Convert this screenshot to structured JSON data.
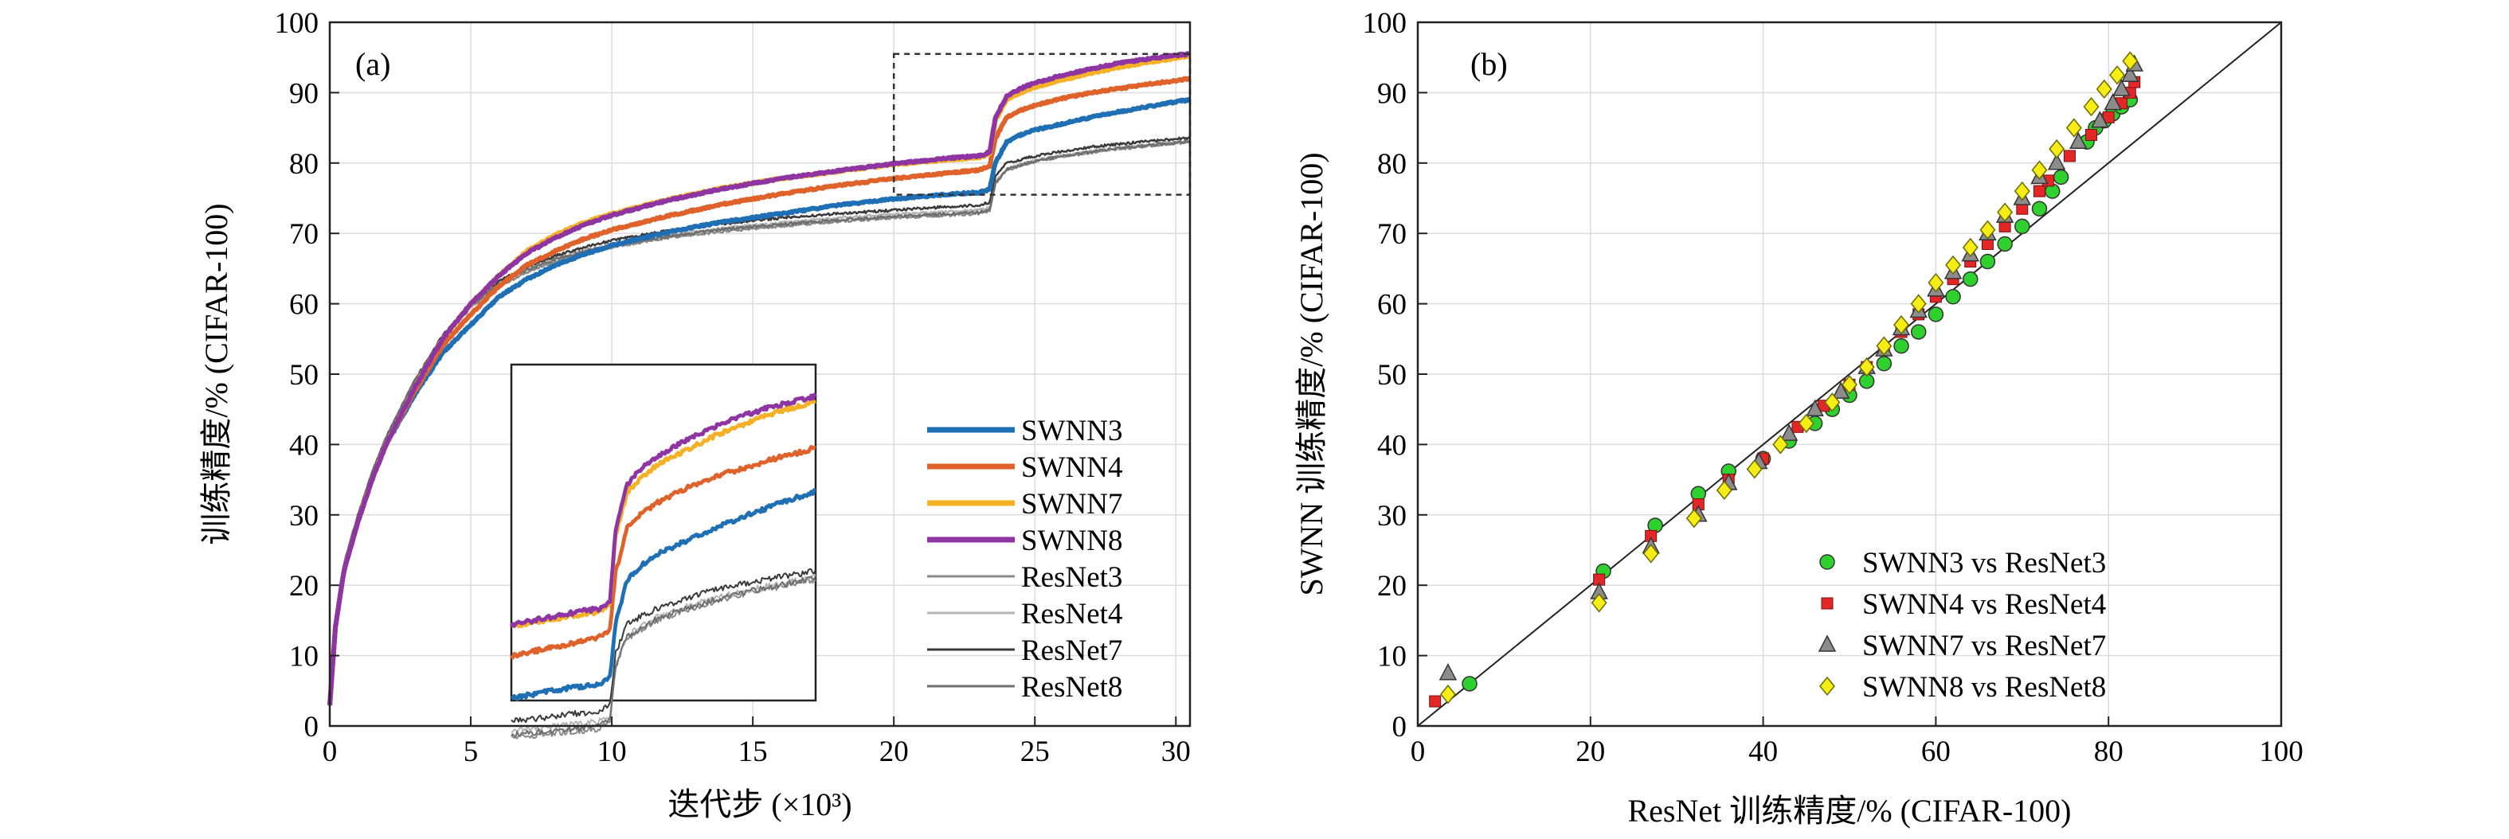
{
  "figure": {
    "panels": [
      "(a)",
      "(b)"
    ]
  },
  "chart_data": [
    {
      "type": "line",
      "panel": "(a)",
      "xlabel": "迭代步 (×10³)",
      "ylabel": "训练精度/% (CIFAR-100)",
      "xlim": [
        0,
        30.5
      ],
      "ylim": [
        0,
        100
      ],
      "xticks": [
        0,
        5,
        10,
        15,
        20,
        25,
        30
      ],
      "yticks": [
        0,
        10,
        20,
        30,
        40,
        50,
        60,
        70,
        80,
        90,
        100
      ],
      "grid": true,
      "legend_position": "bottom-right",
      "inset": {
        "x_range": [
          20,
          30.5
        ],
        "y_range": [
          75.5,
          95.5
        ],
        "placement": "lower-middle"
      },
      "x": [
        0,
        0.2,
        0.5,
        1,
        1.5,
        2,
        3,
        4,
        5,
        6,
        7,
        8,
        9,
        10,
        12,
        14,
        16,
        18,
        20,
        22,
        23,
        23.2,
        23.4,
        23.6,
        24,
        24.5,
        25,
        26,
        27,
        28,
        29,
        30,
        30.5
      ],
      "series": [
        {
          "name": "SWNN3",
          "color": "#1f6fb4",
          "width": 6,
          "values": [
            3,
            14,
            22,
            29,
            35,
            40,
            47,
            53,
            57,
            61,
            63.5,
            65.5,
            67,
            68.3,
            70.2,
            71.7,
            72.8,
            74,
            74.9,
            75.6,
            75.8,
            76,
            76.3,
            80,
            83,
            84,
            84.7,
            85.6,
            86.5,
            87.3,
            88,
            88.7,
            89
          ]
        },
        {
          "name": "SWNN4",
          "color": "#e0622b",
          "width": 6,
          "values": [
            3,
            14,
            22,
            29,
            35,
            40,
            47.5,
            54,
            58.5,
            62.5,
            65.5,
            67.5,
            69.2,
            70.5,
            72.5,
            74.2,
            75.6,
            76.8,
            77.8,
            78.6,
            79,
            79.3,
            79.6,
            83.5,
            86.5,
            87.5,
            88.2,
            89.2,
            90,
            90.6,
            91.2,
            91.7,
            92
          ]
        },
        {
          "name": "SWNN7",
          "color": "#f5b026",
          "width": 6,
          "values": [
            3,
            14,
            22,
            29,
            35,
            40,
            48,
            55,
            60,
            64,
            67.5,
            69.8,
            71.5,
            72.8,
            74.8,
            76.5,
            77.8,
            78.8,
            79.8,
            80.5,
            80.8,
            81,
            81.4,
            86,
            89,
            90,
            90.8,
            91.8,
            92.8,
            93.6,
            94.3,
            94.9,
            95.2
          ]
        },
        {
          "name": "SWNN8",
          "color": "#8e34a3",
          "width": 6,
          "values": [
            3,
            14,
            22,
            29,
            35,
            40,
            48,
            55,
            60,
            64,
            67.2,
            69.4,
            71.2,
            72.6,
            74.7,
            76.4,
            77.8,
            78.9,
            79.9,
            80.7,
            81,
            81.2,
            81.6,
            86.5,
            89.5,
            90.6,
            91.4,
            92.5,
            93.4,
            94.2,
            94.8,
            95.3,
            95.5
          ]
        },
        {
          "name": "ResNet3",
          "color": "#8a8a8a",
          "width": 2.5,
          "values": [
            3,
            15,
            23,
            30,
            36,
            41,
            49,
            55,
            59.5,
            62.5,
            64.5,
            66,
            67.2,
            68,
            69.4,
            70.3,
            71,
            71.7,
            72.2,
            72.6,
            72.8,
            73,
            73.2,
            77,
            79,
            79.6,
            80.2,
            80.9,
            81.5,
            82,
            82.4,
            82.8,
            83
          ]
        },
        {
          "name": "ResNet4",
          "color": "#b5b5b5",
          "width": 2.5,
          "values": [
            3,
            15,
            23,
            30,
            36,
            41,
            49,
            55.5,
            60,
            63,
            65,
            66.5,
            67.6,
            68.5,
            69.8,
            70.8,
            71.5,
            72.2,
            72.7,
            73.1,
            73.3,
            73.5,
            73.7,
            77.3,
            79.2,
            79.8,
            80.4,
            81.1,
            81.7,
            82.2,
            82.6,
            83,
            83.2
          ]
        },
        {
          "name": "ResNet7",
          "color": "#3a3a3a",
          "width": 2.5,
          "values": [
            3,
            15,
            23,
            30,
            36,
            41,
            49,
            55.5,
            60,
            63.2,
            65.3,
            66.8,
            68,
            69,
            70.4,
            71.4,
            72.2,
            72.8,
            73.3,
            73.8,
            74,
            74.2,
            74.4,
            78,
            80,
            80.5,
            81,
            81.7,
            82.3,
            82.7,
            83.1,
            83.4,
            83.6
          ]
        },
        {
          "name": "ResNet8",
          "color": "#6e6e6e",
          "width": 2.5,
          "values": [
            3,
            15,
            23,
            30,
            36,
            41,
            49,
            55.3,
            59.8,
            62.8,
            64.8,
            66.3,
            67.4,
            68.3,
            69.6,
            70.6,
            71.3,
            71.9,
            72.4,
            72.8,
            73,
            73.2,
            73.4,
            77.1,
            79.1,
            79.7,
            80.3,
            81,
            81.6,
            82.1,
            82.5,
            82.9,
            83.1
          ]
        }
      ]
    },
    {
      "type": "scatter",
      "panel": "(b)",
      "xlabel": "ResNet 训练精度/% (CIFAR-100)",
      "ylabel": "SWNN 训练精度/% (CIFAR-100)",
      "xlim": [
        0,
        100
      ],
      "ylim": [
        0,
        100
      ],
      "xticks": [
        0,
        20,
        40,
        60,
        80,
        100
      ],
      "yticks": [
        0,
        10,
        20,
        30,
        40,
        50,
        60,
        70,
        80,
        90,
        100
      ],
      "grid": true,
      "legend_position": "bottom-right",
      "reference_line": "y = x",
      "series": [
        {
          "name": "SWNN3 vs ResNet3",
          "marker": "circle",
          "color": "#2fd12f",
          "points": [
            [
              6,
              6
            ],
            [
              21.5,
              22
            ],
            [
              27.5,
              28.5
            ],
            [
              32.5,
              33
            ],
            [
              36,
              36.2
            ],
            [
              40,
              38
            ],
            [
              43,
              40.5
            ],
            [
              46,
              43
            ],
            [
              48,
              45
            ],
            [
              50,
              47
            ],
            [
              52,
              49
            ],
            [
              54,
              51.5
            ],
            [
              56,
              54
            ],
            [
              58,
              56
            ],
            [
              60,
              58.5
            ],
            [
              62,
              61
            ],
            [
              64,
              63.5
            ],
            [
              66,
              66
            ],
            [
              68,
              68.5
            ],
            [
              70,
              71
            ],
            [
              72,
              73.5
            ],
            [
              73.5,
              76
            ],
            [
              74.5,
              78
            ],
            [
              77.5,
              83
            ],
            [
              78.5,
              85
            ],
            [
              79.5,
              86
            ],
            [
              80.5,
              87
            ],
            [
              81.5,
              88
            ],
            [
              82.5,
              89
            ]
          ]
        },
        {
          "name": "SWNN4 vs ResNet4",
          "marker": "square",
          "color": "#e32626",
          "points": [
            [
              2,
              3.5
            ],
            [
              21,
              20.8
            ],
            [
              27,
              27
            ],
            [
              32.5,
              31.5
            ],
            [
              36,
              35
            ],
            [
              40,
              38
            ],
            [
              44,
              42.5
            ],
            [
              47,
              45.5
            ],
            [
              50,
              48.5
            ],
            [
              52,
              51
            ],
            [
              54,
              53.5
            ],
            [
              56,
              56
            ],
            [
              58,
              58.5
            ],
            [
              60,
              61
            ],
            [
              62,
              63.5
            ],
            [
              64,
              66
            ],
            [
              66,
              68.5
            ],
            [
              68,
              71
            ],
            [
              70,
              73.5
            ],
            [
              72,
              76
            ],
            [
              73,
              77.5
            ],
            [
              75.5,
              81
            ],
            [
              78,
              84
            ],
            [
              80,
              86.5
            ],
            [
              81.5,
              88.5
            ],
            [
              82.5,
              90
            ],
            [
              83,
              91.5
            ]
          ]
        },
        {
          "name": "SWNN7 vs ResNet7",
          "marker": "triangle",
          "color": "#8c8c8c",
          "points": [
            [
              3.5,
              7.5
            ],
            [
              21,
              19
            ],
            [
              27,
              25.5
            ],
            [
              32.5,
              30
            ],
            [
              36,
              34.5
            ],
            [
              39.5,
              37.5
            ],
            [
              43,
              41.5
            ],
            [
              46,
              45
            ],
            [
              49,
              47.5
            ],
            [
              52,
              51
            ],
            [
              54,
              53.5
            ],
            [
              56,
              56.5
            ],
            [
              58,
              59
            ],
            [
              60,
              62
            ],
            [
              62,
              64.5
            ],
            [
              64,
              67
            ],
            [
              66,
              70
            ],
            [
              68,
              72.5
            ],
            [
              70,
              75
            ],
            [
              72,
              78
            ],
            [
              74,
              80
            ],
            [
              76.5,
              83
            ],
            [
              79,
              86
            ],
            [
              80.5,
              88.5
            ],
            [
              81.5,
              90.5
            ],
            [
              82.5,
              92.5
            ],
            [
              83,
              94
            ]
          ]
        },
        {
          "name": "SWNN8 vs ResNet8",
          "marker": "diamond",
          "color": "#f6ec16",
          "points": [
            [
              3.5,
              4.5
            ],
            [
              21,
              17.5
            ],
            [
              27,
              24.5
            ],
            [
              32,
              29.5
            ],
            [
              35.5,
              33.5
            ],
            [
              39,
              36.5
            ],
            [
              42,
              40
            ],
            [
              45,
              43
            ],
            [
              48,
              46
            ],
            [
              50,
              48.5
            ],
            [
              52,
              51
            ],
            [
              54,
              54
            ],
            [
              56,
              57
            ],
            [
              58,
              60
            ],
            [
              60,
              63
            ],
            [
              62,
              65.5
            ],
            [
              64,
              68
            ],
            [
              66,
              70.5
            ],
            [
              68,
              73
            ],
            [
              70,
              76
            ],
            [
              72,
              79
            ],
            [
              74,
              82
            ],
            [
              76,
              85
            ],
            [
              78,
              88
            ],
            [
              79.5,
              90.5
            ],
            [
              81,
              92.5
            ],
            [
              82.5,
              94.5
            ]
          ]
        }
      ]
    }
  ]
}
